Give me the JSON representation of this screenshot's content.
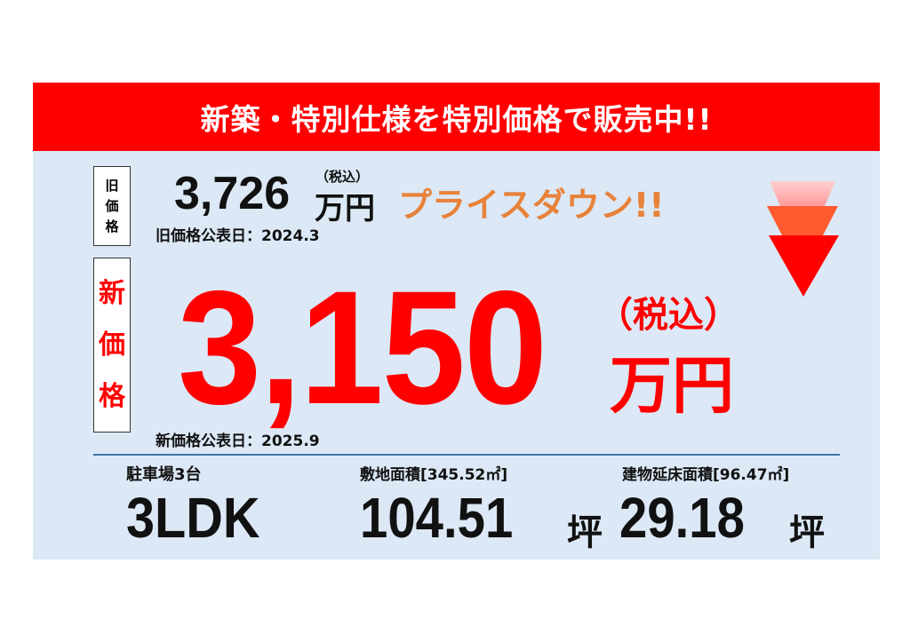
{
  "banner": {
    "title": "新築・特別仕様を特別価格で販売中!!"
  },
  "old_price": {
    "label_chars": [
      "旧",
      "価",
      "格"
    ],
    "value": "3,726",
    "tax_note": "（税込）",
    "unit": "万円",
    "announce_date": "旧価格公表日：2024.3"
  },
  "price_down": {
    "text": "プライスダウン!!",
    "color": "#e8823a",
    "icon": "stacked-down-arrows-icon"
  },
  "new_price": {
    "label_chars": [
      "新",
      "価",
      "格"
    ],
    "value": "3,150",
    "tax_note": "（税込）",
    "unit": "万円",
    "announce_date": "新価格公表日：2025.9",
    "color": "#ff0000"
  },
  "specs": [
    {
      "label": "駐車場3台",
      "value": "3LDK",
      "unit": ""
    },
    {
      "label": "敷地面積[345.52㎡]",
      "value": "104.51",
      "unit": "坪"
    },
    {
      "label": "建物延床面積[96.47㎡]",
      "value": "29.18",
      "unit": "坪"
    }
  ],
  "colors": {
    "banner": "#ff0000",
    "panel": "#dce8f5",
    "accent": "#ff0000"
  }
}
